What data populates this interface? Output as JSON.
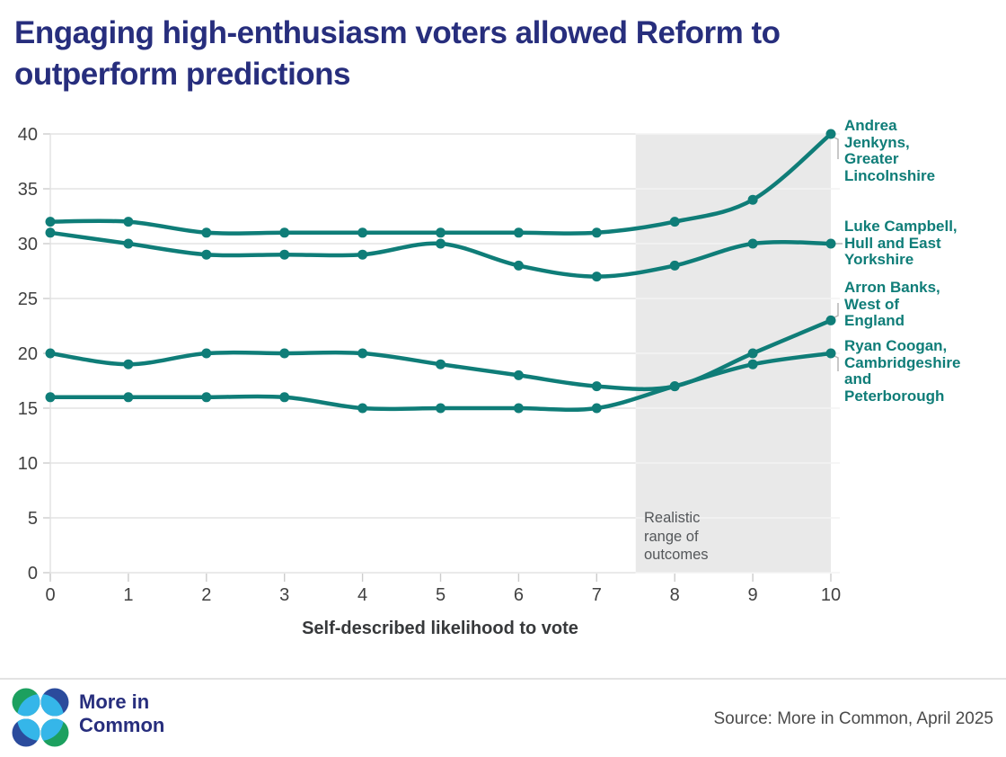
{
  "title": "Engaging high-enthusiasm voters allowed Reform to\noutperform predictions",
  "chart_data": {
    "type": "line",
    "x": [
      0,
      1,
      2,
      3,
      4,
      5,
      6,
      7,
      8,
      9,
      10
    ],
    "xlabel": "Self-described likelihood to vote",
    "ylabel": "",
    "xlim": [
      0,
      10
    ],
    "ylim": [
      0,
      40
    ],
    "xticks": [
      0,
      1,
      2,
      3,
      4,
      5,
      6,
      7,
      8,
      9,
      10
    ],
    "yticks": [
      0,
      5,
      10,
      15,
      20,
      25,
      30,
      35,
      40
    ],
    "grid": "horizontal",
    "legend_position": "right-of-line-ends",
    "line_color": "#0F7D78",
    "highlight_band": {
      "from": 7.5,
      "to": 10,
      "color": "#e9e9e9",
      "label": "Realistic\nrange of\noutcomes"
    },
    "series": [
      {
        "name": "Andrea Jenkyns, Greater Lincolnshire",
        "label": "Andrea\nJenkyns,\nGreater\nLincolnshire",
        "values": [
          32,
          32,
          31,
          31,
          31,
          31,
          31,
          31,
          32,
          34,
          40
        ]
      },
      {
        "name": "Luke Campbell, Hull and East Yorkshire",
        "label": "Luke Campbell,\nHull and East\nYorkshire",
        "values": [
          31,
          30,
          29,
          29,
          29,
          30,
          28,
          27,
          28,
          30,
          30
        ]
      },
      {
        "name": "Arron Banks, West of England",
        "label": "Arron Banks,\nWest of\nEngland",
        "values": [
          20,
          19,
          20,
          20,
          20,
          19,
          18,
          17,
          17,
          20,
          23
        ]
      },
      {
        "name": "Ryan Coogan, Cambridgeshire and Peterborough",
        "label": "Ryan Coogan,\nCambridgeshire\nand\nPeterborough",
        "values": [
          16,
          16,
          16,
          16,
          15,
          15,
          15,
          15,
          17,
          19,
          20
        ]
      }
    ]
  },
  "footer": {
    "logo_text": "More in\nCommon",
    "source": "Source: More in Common, April 2025"
  },
  "colors": {
    "title_navy": "#272E7D",
    "line_teal": "#0F7D78",
    "band_gray": "#e9e9e9",
    "grid_gray": "#e4e4e4",
    "tick_text": "#414141",
    "logo_green": "#1CA05F",
    "logo_dark_blue": "#2B4B9C",
    "logo_light_blue": "#35B6E9"
  }
}
